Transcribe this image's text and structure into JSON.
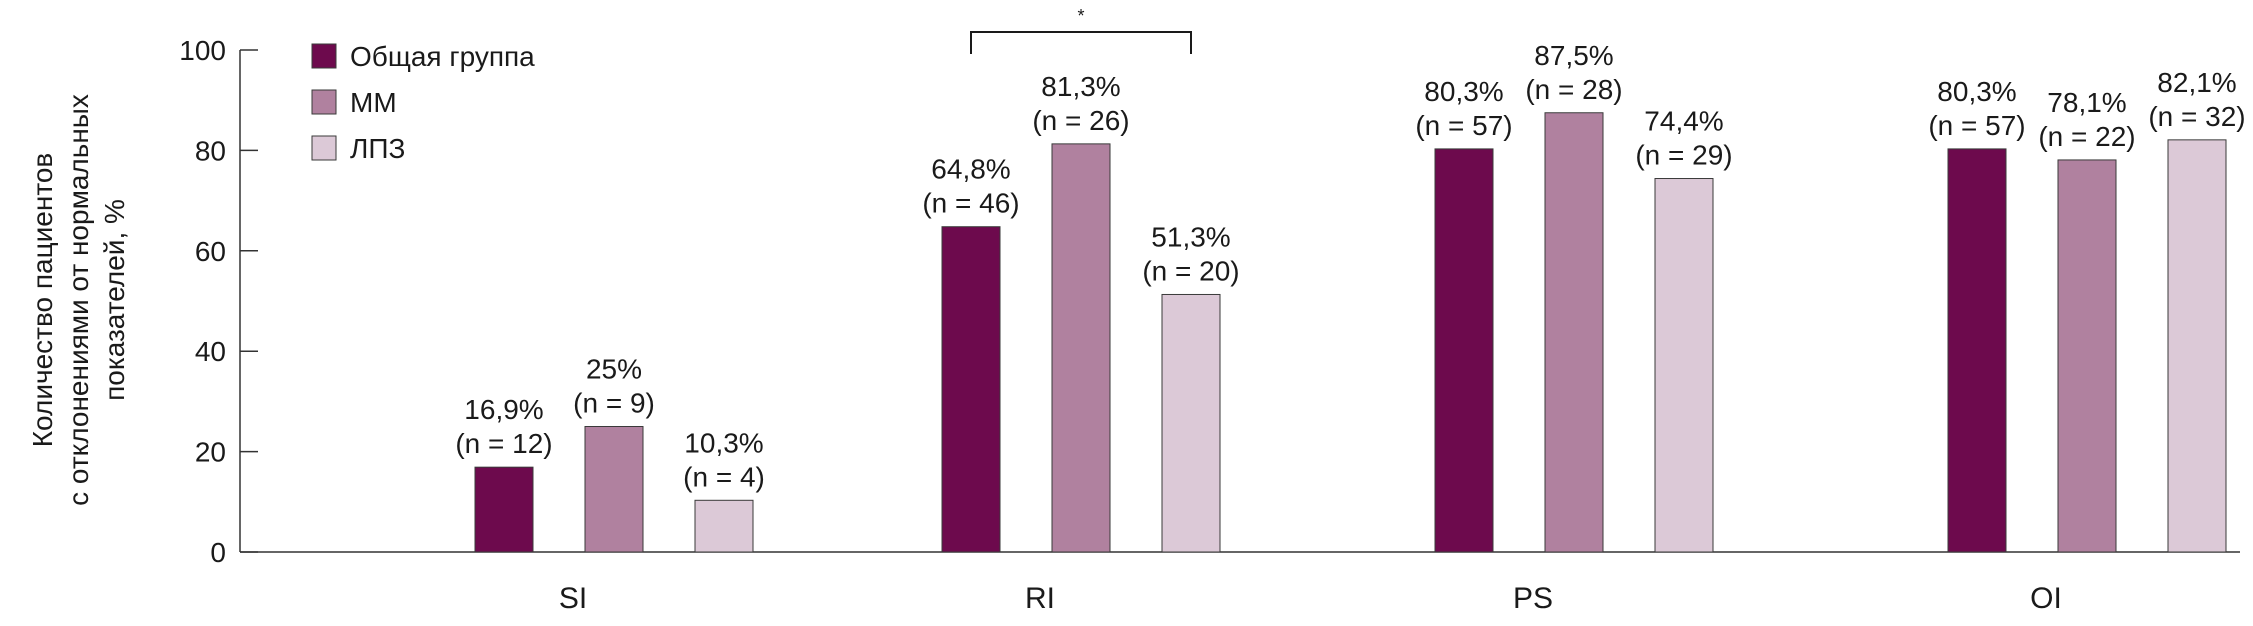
{
  "chart_data": {
    "type": "bar",
    "categories": [
      "SI",
      "RI",
      "PS",
      "OI"
    ],
    "ylabel": [
      "Количество пациентов",
      "с отклонениями от нормальных",
      "показателей, %"
    ],
    "ylim": [
      0,
      100
    ],
    "yticks": [
      0,
      20,
      40,
      60,
      80,
      100
    ],
    "grid": false,
    "legend_position": "top-left",
    "series": [
      {
        "name": "Общая группа",
        "color": "#6d0a4d",
        "values": [
          16.9,
          64.8,
          80.3,
          80.3
        ],
        "labels": [
          "16,9%",
          "64,8%",
          "80,3%",
          "80,3%"
        ],
        "n_labels": [
          "(n = 12)",
          "(n = 46)",
          "(n = 57)",
          "(n = 57)"
        ]
      },
      {
        "name": "ММ",
        "color": "#b0819f",
        "values": [
          25,
          81.3,
          87.5,
          78.1
        ],
        "labels": [
          "25%",
          "81,3%",
          "87,5%",
          "78,1%"
        ],
        "n_labels": [
          "(n = 9)",
          "(n = 26)",
          "(n = 28)",
          "(n = 22)"
        ]
      },
      {
        "name": "ЛПЗ",
        "color": "#dcc9d7",
        "values": [
          10.3,
          51.3,
          74.4,
          82.1
        ],
        "labels": [
          "10,3%",
          "51,3%",
          "74,4%",
          "82,1%"
        ],
        "n_labels": [
          "(n = 4)",
          "(n = 20)",
          "(n = 29)",
          "(n = 32)"
        ]
      }
    ],
    "annotations": [
      {
        "category": "RI",
        "from_series": 0,
        "to_series": 2,
        "text": "*"
      }
    ]
  }
}
